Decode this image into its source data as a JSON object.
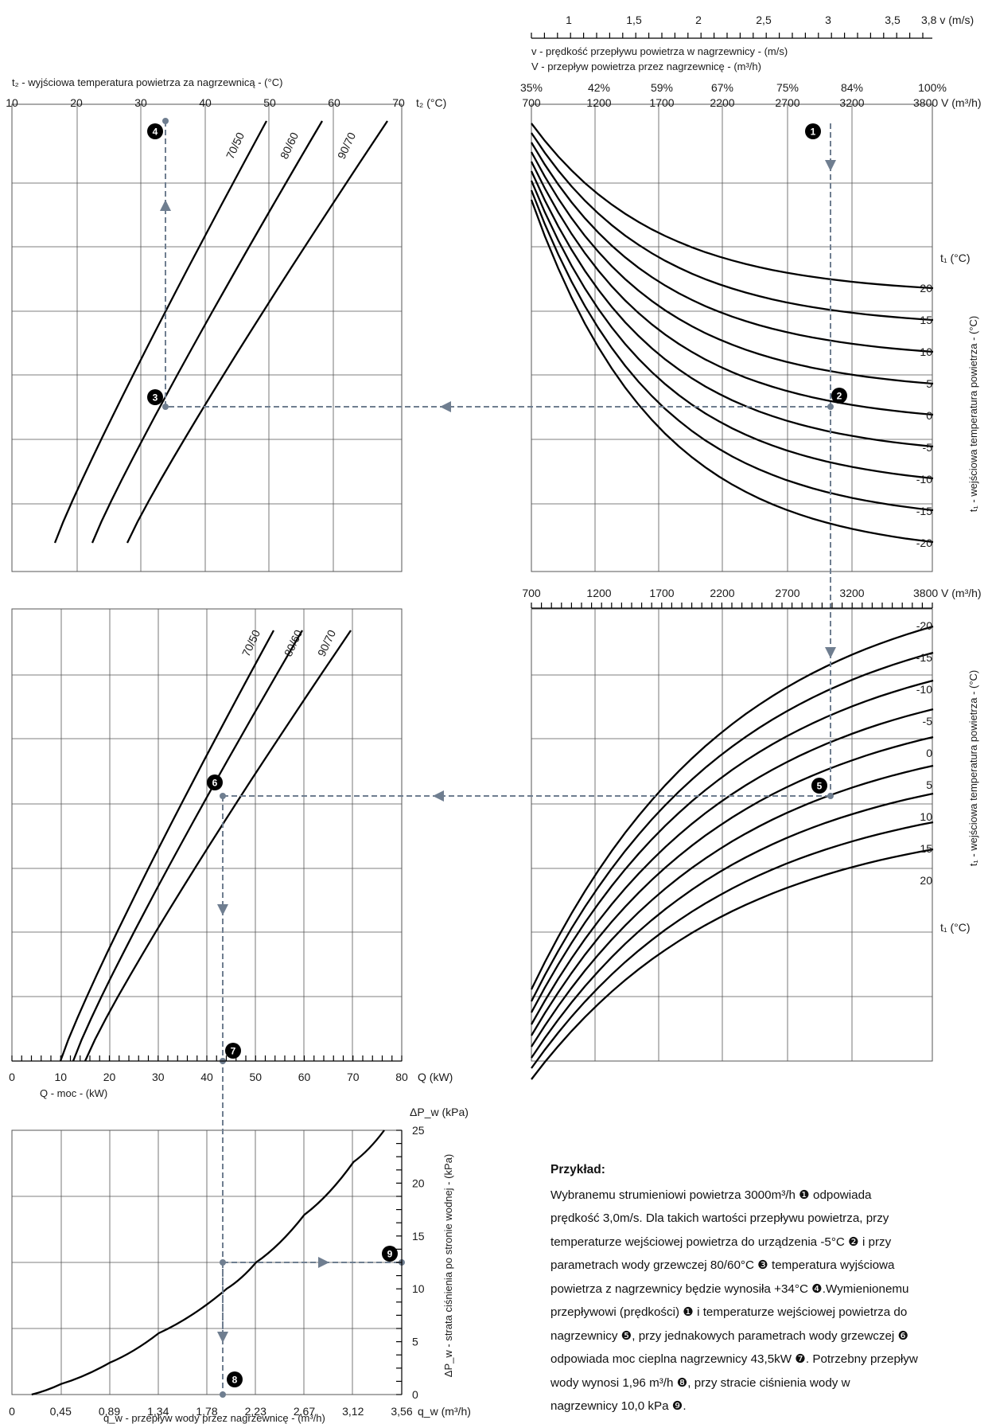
{
  "chart_data": [
    {
      "panel": "top-right",
      "type": "line",
      "top_axis": {
        "title": "v (m/s)",
        "ticks": [
          "1",
          "1,5",
          "2",
          "2,5",
          "3",
          "3,5",
          "3,8"
        ],
        "values": [
          1,
          1.5,
          2,
          2.5,
          3,
          3.5,
          3.8
        ],
        "label_v": "v - prędkość przepływu powietrza w nagrzewnicy - (m/s)",
        "label_V": "V - przepływ powietrza przez nagrzewnicę - (m³/h)"
      },
      "x_axis": {
        "title": "V (m³/h)",
        "ticks": [
          "700",
          "1200",
          "1700",
          "2200",
          "2700",
          "3200",
          "3800"
        ],
        "values": [
          700,
          1200,
          1700,
          2200,
          2700,
          3200,
          3800
        ],
        "percent": [
          "35%",
          "42%",
          "59%",
          "67%",
          "75%",
          "84%",
          "100%"
        ]
      },
      "right_axis": {
        "title": "t₁ (°C)",
        "label": "t₁ - wejściowa temperatura powietrza - (°C)",
        "ticks": [
          "20",
          "15",
          "10",
          "5",
          "0",
          "-5",
          "-10",
          "-15",
          "-20"
        ]
      },
      "series_t1": [
        20,
        15,
        10,
        5,
        0,
        -5,
        -10,
        -15,
        -20
      ]
    },
    {
      "panel": "top-left",
      "type": "line",
      "x_axis": {
        "title": "t₂ (°C)",
        "label": "t₂ - wyjściowa temperatura powietrza za nagrzewnicą - (°C)",
        "ticks": [
          "10",
          "20",
          "30",
          "40",
          "50",
          "60",
          "70"
        ],
        "values": [
          10,
          20,
          30,
          40,
          50,
          60,
          70
        ]
      },
      "series": [
        {
          "name": "70/50"
        },
        {
          "name": "80/60"
        },
        {
          "name": "90/70"
        }
      ]
    },
    {
      "panel": "middle-right",
      "type": "line",
      "x_axis": {
        "title": "V (m³/h)",
        "ticks": [
          "700",
          "1200",
          "1700",
          "2200",
          "2700",
          "3200",
          "3800"
        ],
        "values": [
          700,
          1200,
          1700,
          2200,
          2700,
          3200,
          3800
        ]
      },
      "right_axis": {
        "label": "t₁ - wejściowa temperatura powietrza - (°C)",
        "ticks": [
          "-20",
          "-15",
          "-10",
          "-5",
          "0",
          "5",
          "10",
          "15",
          "20"
        ],
        "unit": "t₁ (°C)"
      }
    },
    {
      "panel": "middle-left",
      "type": "line",
      "x_axis": {
        "title": "Q (kW)",
        "label": "Q - moc - (kW)",
        "ticks": [
          "0",
          "10",
          "20",
          "30",
          "40",
          "50",
          "60",
          "70",
          "80"
        ],
        "values": [
          0,
          10,
          20,
          30,
          40,
          50,
          60,
          70,
          80
        ]
      },
      "series": [
        {
          "name": "70/50"
        },
        {
          "name": "80/60"
        },
        {
          "name": "90/70"
        }
      ]
    },
    {
      "panel": "bottom-left",
      "type": "line",
      "x_axis": {
        "title": "q_w (m³/h)",
        "label": "q_w - przepływ wody przez nagrzewnicę - (m³/h)",
        "ticks": [
          "0",
          "0,45",
          "0,89",
          "1,34",
          "1,78",
          "2,23",
          "2,67",
          "3,12",
          "3,56"
        ],
        "values": [
          0,
          0.45,
          0.89,
          1.34,
          1.78,
          2.23,
          2.67,
          3.12,
          3.56
        ]
      },
      "y_axis": {
        "title": "ΔP_w (kPa)",
        "label": "ΔP_w - strata ciśnienia po stronie wodnej - (kPa)",
        "ticks": [
          "0",
          "5",
          "10",
          "15",
          "20",
          "25"
        ],
        "values": [
          0,
          5,
          10,
          15,
          20,
          25
        ],
        "ylim": [
          0,
          25
        ]
      },
      "points": [
        {
          "x": 0.18,
          "y": 0
        },
        {
          "x": 0.45,
          "y": 1.0
        },
        {
          "x": 0.89,
          "y": 3.0
        },
        {
          "x": 1.34,
          "y": 5.8
        },
        {
          "x": 1.96,
          "y": 10.0
        },
        {
          "x": 2.23,
          "y": 12.5
        },
        {
          "x": 2.67,
          "y": 17.0
        },
        {
          "x": 3.12,
          "y": 22.0
        },
        {
          "x": 3.4,
          "y": 25.0
        }
      ]
    }
  ],
  "markers": [
    "1",
    "2",
    "3",
    "4",
    "5",
    "6",
    "7",
    "8",
    "9"
  ],
  "example": {
    "title": "Przykład:",
    "lines": [
      "Wybranemu strumieniowi powietrza 3000m³/h ❶ odpowiada",
      "prędkość 3,0m/s. Dla takich wartości przepływu powietrza, przy",
      "temperaturze wejściowej powietrza do urządzenia -5°C ❷ i przy",
      "parametrach wody grzewczej 80/60°C ❸ temperatura wyjściowa",
      "powietrza z nagrzewnicy będzie wynosiła +34°C ❹.Wymienionemu",
      "przepływowi (prędkości) ❶ i temperaturze wejściowej powietrza do",
      "nagrzewnicy ❺, przy jednakowych parametrach wody grzewczej ❻",
      "odpowiada moc cieplna nagrzewnicy 43,5kW ❼. Potrzebny przepływ",
      "wody wynosi 1,96 m³/h ❽, przy stracie ciśnienia wody w",
      "nagrzewnicy 10,0 kPa ❾."
    ]
  }
}
